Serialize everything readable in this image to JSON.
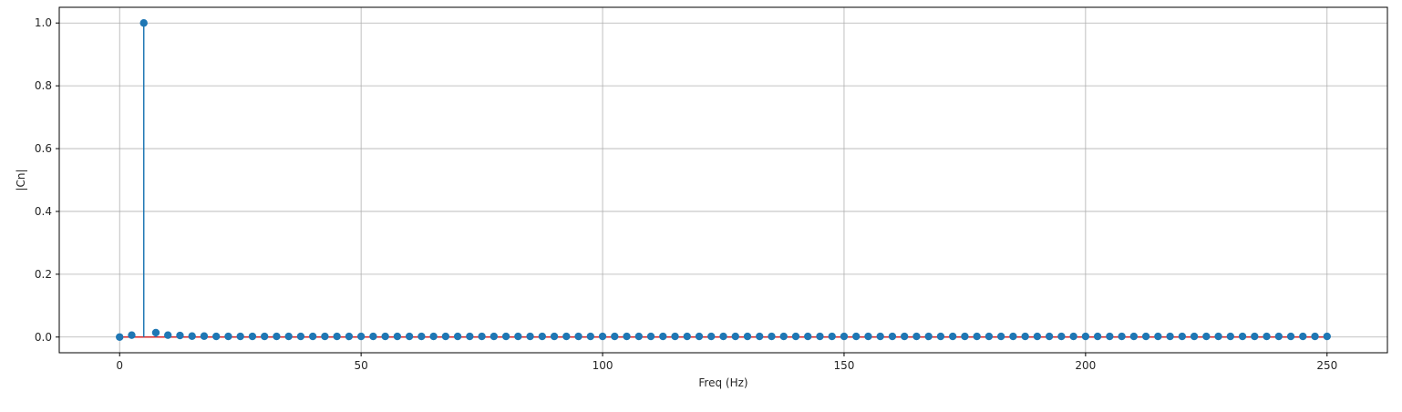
{
  "chart_data": {
    "type": "stem",
    "title": "",
    "xlabel": "Freq (Hz)",
    "ylabel": "|Cn|",
    "xlim": [
      -12.5,
      262.5
    ],
    "ylim": [
      -0.05,
      1.05
    ],
    "x_ticks": [
      0,
      50,
      100,
      150,
      200,
      250
    ],
    "x_tick_labels": [
      "0",
      "50",
      "100",
      "150",
      "200",
      "250"
    ],
    "y_ticks": [
      0.0,
      0.2,
      0.4,
      0.6,
      0.8,
      1.0
    ],
    "y_tick_labels": [
      "0.0",
      "0.2",
      "0.4",
      "0.6",
      "0.8",
      "1.0"
    ],
    "grid": true,
    "x_start": 0,
    "x_step": 2.5,
    "num_points": 101,
    "values": [
      0.0,
      0.006,
      1.0,
      0.014,
      0.006,
      0.005,
      0.003,
      0.003,
      0.002,
      0.002,
      0.002,
      0.002,
      0.002,
      0.002,
      0.002,
      0.002,
      0.002,
      0.002,
      0.002,
      0.002,
      0.002,
      0.002,
      0.002,
      0.002,
      0.002,
      0.002,
      0.002,
      0.002,
      0.002,
      0.002,
      0.002,
      0.002,
      0.002,
      0.002,
      0.002,
      0.002,
      0.002,
      0.002,
      0.002,
      0.002,
      0.002,
      0.002,
      0.002,
      0.002,
      0.002,
      0.002,
      0.002,
      0.002,
      0.002,
      0.002,
      0.002,
      0.002,
      0.002,
      0.002,
      0.002,
      0.002,
      0.002,
      0.002,
      0.002,
      0.002,
      0.002,
      0.002,
      0.002,
      0.002,
      0.002,
      0.002,
      0.002,
      0.002,
      0.002,
      0.002,
      0.002,
      0.002,
      0.002,
      0.002,
      0.002,
      0.002,
      0.002,
      0.002,
      0.002,
      0.002,
      0.002,
      0.002,
      0.002,
      0.002,
      0.002,
      0.002,
      0.002,
      0.002,
      0.002,
      0.002,
      0.002,
      0.002,
      0.002,
      0.002,
      0.002,
      0.002,
      0.002,
      0.002,
      0.002,
      0.002,
      0.002
    ],
    "colors": {
      "marker": "#1f77b4",
      "stem": "#1f77b4",
      "baseline": "#d62728",
      "grid": "#b0b0b0",
      "axes": "#000000"
    }
  }
}
